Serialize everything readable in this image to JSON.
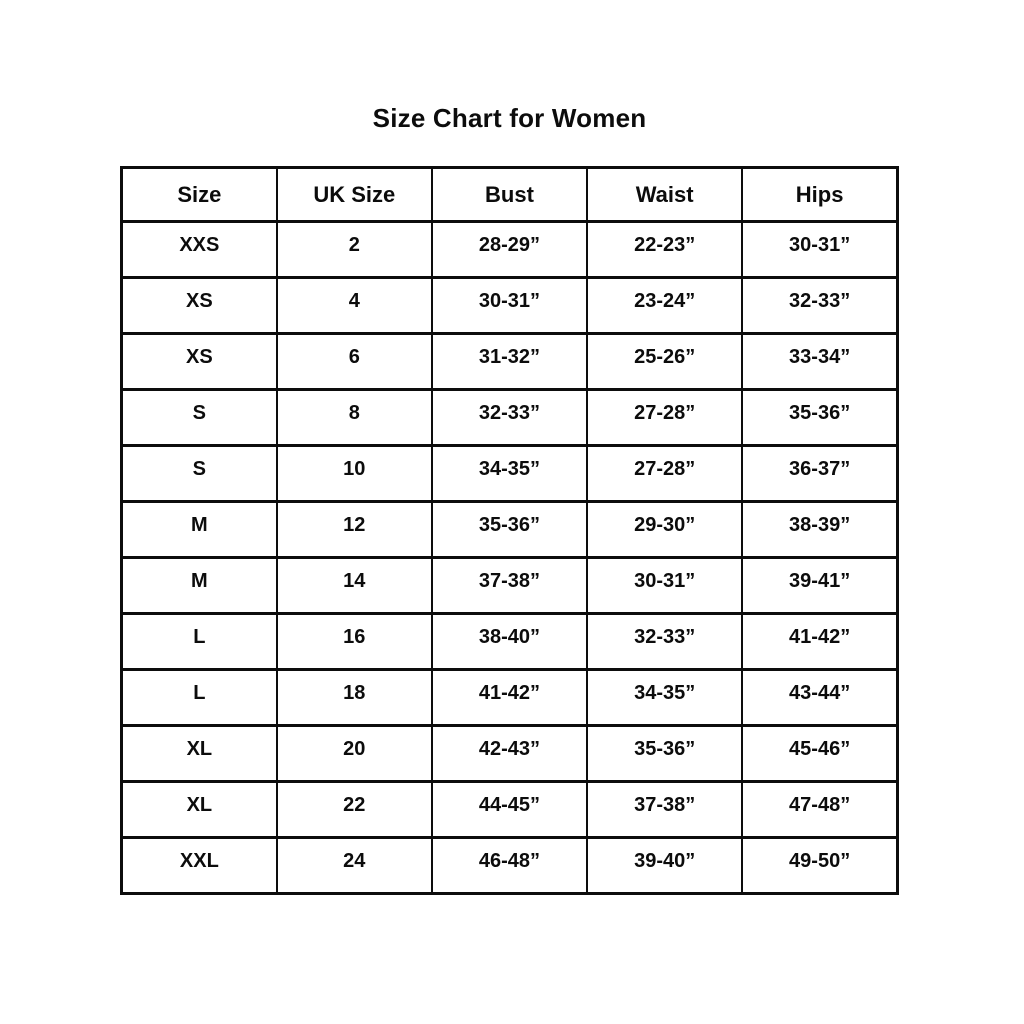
{
  "title": "Size Chart for Women",
  "colors": {
    "background": "#ffffff",
    "text": "#0c0c0c",
    "border": "#0d0d0d"
  },
  "table": {
    "columns": [
      "Size",
      "UK Size",
      "Bust",
      "Waist",
      "Hips"
    ],
    "rows": [
      [
        "XXS",
        "2",
        "28-29”",
        "22-23”",
        "30-31”"
      ],
      [
        "XS",
        "4",
        "30-31”",
        "23-24”",
        "32-33”"
      ],
      [
        "XS",
        "6",
        "31-32”",
        "25-26”",
        "33-34”"
      ],
      [
        "S",
        "8",
        "32-33”",
        "27-28”",
        "35-36”"
      ],
      [
        "S",
        "10",
        "34-35”",
        "27-28”",
        "36-37”"
      ],
      [
        "M",
        "12",
        "35-36”",
        "29-30”",
        "38-39”"
      ],
      [
        "M",
        "14",
        "37-38”",
        "30-31”",
        "39-41”"
      ],
      [
        "L",
        "16",
        "38-40”",
        "32-33”",
        "41-42”"
      ],
      [
        "L",
        "18",
        "41-42”",
        "34-35”",
        "43-44”"
      ],
      [
        "XL",
        "20",
        "42-43”",
        "35-36”",
        "45-46”"
      ],
      [
        "XL",
        "22",
        "44-45”",
        "37-38”",
        "47-48”"
      ],
      [
        "XXL",
        "24",
        "46-48”",
        "39-40”",
        "49-50”"
      ]
    ]
  }
}
